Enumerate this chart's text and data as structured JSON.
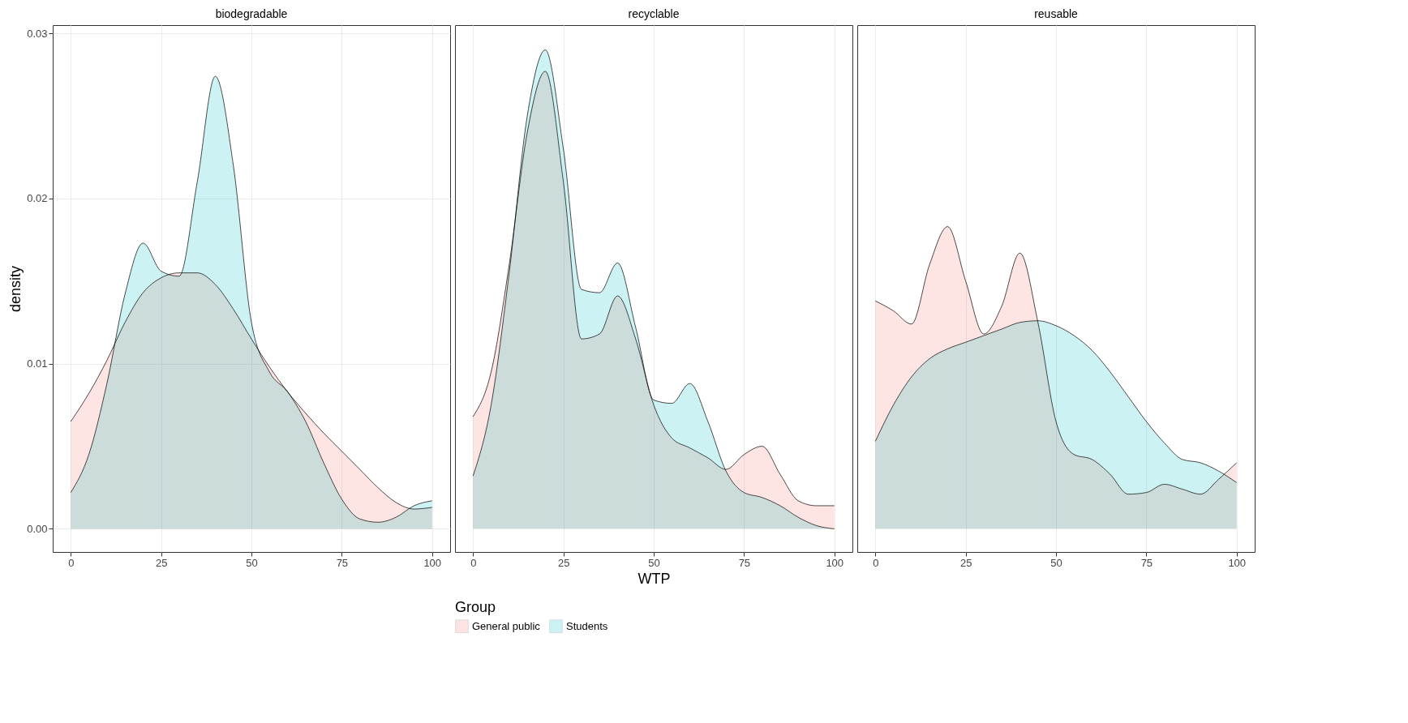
{
  "chart_data": [
    {
      "type": "area",
      "title": "biodegradable",
      "ylabel": "density",
      "xlim": [
        -5,
        105
      ],
      "xticks": [
        0,
        25,
        50,
        75,
        100
      ],
      "ylim": [
        -0.0014,
        0.0305
      ],
      "yticks": [
        {
          "value": 0,
          "label": "0.00"
        },
        {
          "value": 0.01,
          "label": "0.01"
        },
        {
          "value": 0.02,
          "label": "0.02"
        },
        {
          "value": 0.03,
          "label": "0.03"
        }
      ],
      "grid": true,
      "x": [
        0,
        5,
        10,
        15,
        20,
        25,
        30,
        35,
        40,
        45,
        50,
        55,
        60,
        65,
        70,
        75,
        80,
        85,
        90,
        95,
        100
      ],
      "series": [
        {
          "color": "#f8766d",
          "values": [
            0.0065,
            0.0082,
            0.0102,
            0.0125,
            0.0143,
            0.0152,
            0.0155,
            0.0155,
            0.0148,
            0.0133,
            0.0115,
            0.0098,
            0.0083,
            0.007,
            0.0058,
            0.0047,
            0.0036,
            0.0025,
            0.0016,
            0.0012,
            0.0013
          ]
        },
        {
          "color": "#00bfc4",
          "values": [
            0.0022,
            0.0045,
            0.0088,
            0.0142,
            0.0173,
            0.0156,
            0.0153,
            0.021,
            0.0274,
            0.022,
            0.0125,
            0.0095,
            0.0083,
            0.0065,
            0.004,
            0.0018,
            0.0006,
            0.0004,
            0.0007,
            0.0014,
            0.0017
          ]
        }
      ]
    },
    {
      "type": "area",
      "title": "recyclable",
      "xlabel": "WTP",
      "xlim": [
        -5,
        105
      ],
      "xticks": [
        0,
        25,
        50,
        75,
        100
      ],
      "ylim": [
        -0.0014,
        0.0305
      ],
      "tick_labels": "x",
      "grid": true,
      "legend": "bottom",
      "legend_title": "Group",
      "x": [
        0,
        5,
        10,
        15,
        20,
        25,
        30,
        35,
        40,
        45,
        50,
        55,
        60,
        65,
        70,
        75,
        80,
        85,
        90,
        95,
        100
      ],
      "series": [
        {
          "name": "General public",
          "color": "#f8766d",
          "values": [
            0.0068,
            0.0095,
            0.016,
            0.024,
            0.0277,
            0.021,
            0.0115,
            0.0118,
            0.0141,
            0.0115,
            0.0075,
            0.0055,
            0.0049,
            0.0043,
            0.0036,
            0.0045,
            0.005,
            0.0033,
            0.0017,
            0.0014,
            0.0014
          ]
        },
        {
          "name": "Students",
          "color": "#00bfc4",
          "values": [
            0.0032,
            0.0075,
            0.0155,
            0.025,
            0.029,
            0.023,
            0.0145,
            0.0143,
            0.0161,
            0.0122,
            0.0078,
            0.0076,
            0.0088,
            0.0065,
            0.0035,
            0.0022,
            0.0019,
            0.0014,
            0.0007,
            0.0002,
            0
          ]
        }
      ]
    },
    {
      "type": "area",
      "title": "reusable",
      "xlim": [
        -5,
        105
      ],
      "xticks": [
        0,
        25,
        50,
        75,
        100
      ],
      "ylim": [
        -0.0014,
        0.0305
      ],
      "tick_labels": "x",
      "grid": true,
      "x": [
        0,
        5,
        10,
        15,
        20,
        25,
        30,
        35,
        40,
        45,
        50,
        55,
        60,
        65,
        70,
        75,
        80,
        85,
        90,
        95,
        100
      ],
      "series": [
        {
          "color": "#f8766d",
          "values": [
            0.0138,
            0.0132,
            0.0124,
            0.016,
            0.0183,
            0.015,
            0.0118,
            0.0135,
            0.0167,
            0.0125,
            0.0065,
            0.0045,
            0.0042,
            0.0033,
            0.0021,
            0.0022,
            0.0027,
            0.0024,
            0.0021,
            0.003,
            0.004
          ]
        },
        {
          "color": "#00bfc4",
          "values": [
            0.0053,
            0.0075,
            0.0092,
            0.0103,
            0.0109,
            0.0113,
            0.0117,
            0.0121,
            0.0125,
            0.0126,
            0.0123,
            0.0117,
            0.0108,
            0.0095,
            0.008,
            0.0065,
            0.0052,
            0.0042,
            0.004,
            0.0035,
            0.0028
          ]
        }
      ]
    }
  ]
}
